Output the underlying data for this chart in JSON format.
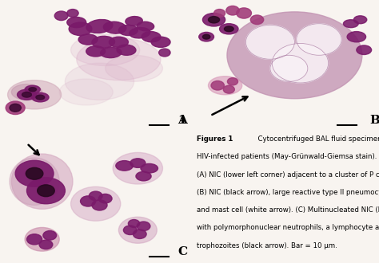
{
  "background_color": "#f8f4f0",
  "caption_fontsize": 6.2,
  "caption_bold_part": "Figures 1",
  "caption_lines": [
    "  Cytocentrifuged BAL fluid specimens from",
    "HIV-infected patients (May-Grünwald-Giemsa stain).",
    "(A) NIC (lower left corner) adjacent to a cluster of P carinii cysts.",
    "(B) NIC (black arrow), large reactive type II pneumocyte (center)",
    "and mast cell (white arrow). (C) Multinucleated NIC (black arrow)",
    "with polymorphonuclear neutrophils, a lymphocyte and P carinii",
    "trophozoites (black arrow). Bar = 10 μm."
  ],
  "label_fontsize": 11,
  "panel_bg": "#f7f1ee",
  "cell_purple_dark": "#7a1a6a",
  "cell_purple_mid": "#a03878",
  "cell_purple_light": "#d4a0c0",
  "cell_pink_bg": "#e8c8d8",
  "white_bg": "#fafafa"
}
